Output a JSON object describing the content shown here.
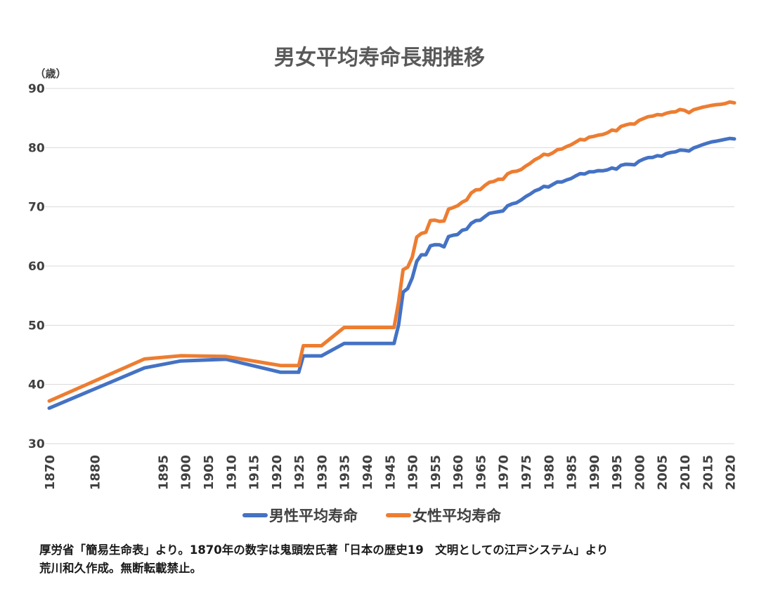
{
  "chart_data": {
    "type": "line",
    "title": "男女平均寿命長期推移",
    "y_unit": "（歳）",
    "ylim": [
      30,
      90
    ],
    "yticks": [
      30,
      40,
      50,
      60,
      70,
      80,
      90
    ],
    "xlim": [
      1870,
      2021
    ],
    "xticks": [
      1870,
      1880,
      1895,
      1900,
      1905,
      1910,
      1915,
      1920,
      1925,
      1930,
      1935,
      1940,
      1945,
      1950,
      1955,
      1960,
      1965,
      1970,
      1975,
      1980,
      1985,
      1990,
      1995,
      2000,
      2005,
      2010,
      2015,
      2020
    ],
    "grid": true,
    "legend_position": "bottom",
    "colors": {
      "male": "#4472C4",
      "female": "#ED7D31"
    },
    "series": [
      {
        "name": "男性平均寿命",
        "color": "#4472C4",
        "points": [
          [
            1870,
            36.0
          ],
          [
            1891,
            42.8
          ],
          [
            1899,
            43.97
          ],
          [
            1909,
            44.25
          ],
          [
            1921,
            42.06
          ],
          [
            1925,
            42.06
          ],
          [
            1926,
            44.82
          ],
          [
            1930,
            44.82
          ],
          [
            1935,
            46.92
          ],
          [
            1946,
            46.92
          ],
          [
            1947,
            50.06
          ],
          [
            1948,
            55.6
          ],
          [
            1949,
            56.2
          ],
          [
            1950,
            58.0
          ],
          [
            1951,
            60.8
          ],
          [
            1952,
            61.9
          ],
          [
            1953,
            61.9
          ],
          [
            1954,
            63.41
          ],
          [
            1955,
            63.6
          ],
          [
            1956,
            63.59
          ],
          [
            1957,
            63.24
          ],
          [
            1958,
            64.98
          ],
          [
            1959,
            65.21
          ],
          [
            1960,
            65.32
          ],
          [
            1961,
            66.03
          ],
          [
            1962,
            66.23
          ],
          [
            1963,
            67.21
          ],
          [
            1964,
            67.67
          ],
          [
            1965,
            67.74
          ],
          [
            1966,
            68.35
          ],
          [
            1967,
            68.91
          ],
          [
            1968,
            69.05
          ],
          [
            1969,
            69.18
          ],
          [
            1970,
            69.31
          ],
          [
            1971,
            70.17
          ],
          [
            1972,
            70.5
          ],
          [
            1973,
            70.7
          ],
          [
            1974,
            71.16
          ],
          [
            1975,
            71.73
          ],
          [
            1976,
            72.15
          ],
          [
            1977,
            72.69
          ],
          [
            1978,
            72.97
          ],
          [
            1979,
            73.46
          ],
          [
            1980,
            73.35
          ],
          [
            1981,
            73.79
          ],
          [
            1982,
            74.22
          ],
          [
            1983,
            74.2
          ],
          [
            1984,
            74.54
          ],
          [
            1985,
            74.78
          ],
          [
            1986,
            75.23
          ],
          [
            1987,
            75.61
          ],
          [
            1988,
            75.54
          ],
          [
            1989,
            75.91
          ],
          [
            1990,
            75.92
          ],
          [
            1991,
            76.11
          ],
          [
            1992,
            76.09
          ],
          [
            1993,
            76.25
          ],
          [
            1994,
            76.57
          ],
          [
            1995,
            76.38
          ],
          [
            1996,
            77.01
          ],
          [
            1997,
            77.19
          ],
          [
            1998,
            77.16
          ],
          [
            1999,
            77.1
          ],
          [
            2000,
            77.72
          ],
          [
            2001,
            78.07
          ],
          [
            2002,
            78.32
          ],
          [
            2003,
            78.36
          ],
          [
            2004,
            78.64
          ],
          [
            2005,
            78.56
          ],
          [
            2006,
            79.0
          ],
          [
            2007,
            79.19
          ],
          [
            2008,
            79.29
          ],
          [
            2009,
            79.59
          ],
          [
            2010,
            79.55
          ],
          [
            2011,
            79.44
          ],
          [
            2012,
            79.94
          ],
          [
            2013,
            80.21
          ],
          [
            2014,
            80.5
          ],
          [
            2015,
            80.75
          ],
          [
            2016,
            80.98
          ],
          [
            2017,
            81.09
          ],
          [
            2018,
            81.25
          ],
          [
            2019,
            81.41
          ],
          [
            2020,
            81.56
          ],
          [
            2021,
            81.47
          ]
        ]
      },
      {
        "name": "女性平均寿命",
        "color": "#ED7D31",
        "points": [
          [
            1870,
            37.2
          ],
          [
            1891,
            44.3
          ],
          [
            1899,
            44.85
          ],
          [
            1909,
            44.73
          ],
          [
            1921,
            43.2
          ],
          [
            1925,
            43.2
          ],
          [
            1926,
            46.54
          ],
          [
            1930,
            46.54
          ],
          [
            1935,
            49.63
          ],
          [
            1946,
            49.63
          ],
          [
            1947,
            53.96
          ],
          [
            1948,
            59.4
          ],
          [
            1949,
            59.8
          ],
          [
            1950,
            61.5
          ],
          [
            1951,
            64.9
          ],
          [
            1952,
            65.5
          ],
          [
            1953,
            65.7
          ],
          [
            1954,
            67.69
          ],
          [
            1955,
            67.75
          ],
          [
            1956,
            67.54
          ],
          [
            1957,
            67.6
          ],
          [
            1958,
            69.61
          ],
          [
            1959,
            69.88
          ],
          [
            1960,
            70.19
          ],
          [
            1961,
            70.79
          ],
          [
            1962,
            71.16
          ],
          [
            1963,
            72.34
          ],
          [
            1964,
            72.87
          ],
          [
            1965,
            72.92
          ],
          [
            1966,
            73.61
          ],
          [
            1967,
            74.15
          ],
          [
            1968,
            74.3
          ],
          [
            1969,
            74.67
          ],
          [
            1970,
            74.66
          ],
          [
            1971,
            75.58
          ],
          [
            1972,
            75.94
          ],
          [
            1973,
            76.02
          ],
          [
            1974,
            76.31
          ],
          [
            1975,
            76.89
          ],
          [
            1976,
            77.35
          ],
          [
            1977,
            77.95
          ],
          [
            1978,
            78.33
          ],
          [
            1979,
            78.89
          ],
          [
            1980,
            78.76
          ],
          [
            1981,
            79.13
          ],
          [
            1982,
            79.66
          ],
          [
            1983,
            79.78
          ],
          [
            1984,
            80.18
          ],
          [
            1985,
            80.48
          ],
          [
            1986,
            80.93
          ],
          [
            1987,
            81.39
          ],
          [
            1988,
            81.3
          ],
          [
            1989,
            81.77
          ],
          [
            1990,
            81.9
          ],
          [
            1991,
            82.11
          ],
          [
            1992,
            82.22
          ],
          [
            1993,
            82.51
          ],
          [
            1994,
            82.98
          ],
          [
            1995,
            82.85
          ],
          [
            1996,
            83.59
          ],
          [
            1997,
            83.82
          ],
          [
            1998,
            84.01
          ],
          [
            1999,
            83.99
          ],
          [
            2000,
            84.6
          ],
          [
            2001,
            84.93
          ],
          [
            2002,
            85.23
          ],
          [
            2003,
            85.33
          ],
          [
            2004,
            85.59
          ],
          [
            2005,
            85.52
          ],
          [
            2006,
            85.81
          ],
          [
            2007,
            85.99
          ],
          [
            2008,
            86.05
          ],
          [
            2009,
            86.44
          ],
          [
            2010,
            86.3
          ],
          [
            2011,
            85.9
          ],
          [
            2012,
            86.41
          ],
          [
            2013,
            86.61
          ],
          [
            2014,
            86.83
          ],
          [
            2015,
            86.99
          ],
          [
            2016,
            87.14
          ],
          [
            2017,
            87.26
          ],
          [
            2018,
            87.32
          ],
          [
            2019,
            87.45
          ],
          [
            2020,
            87.71
          ],
          [
            2021,
            87.57
          ]
        ]
      }
    ]
  },
  "notes": {
    "line1": "厚労省「簡易生命表」より。1870年の数字は鬼頭宏氏著「日本の歴史19　文明としての江戸システム」より",
    "line2": "荒川和久作成。無断転載禁止。"
  }
}
